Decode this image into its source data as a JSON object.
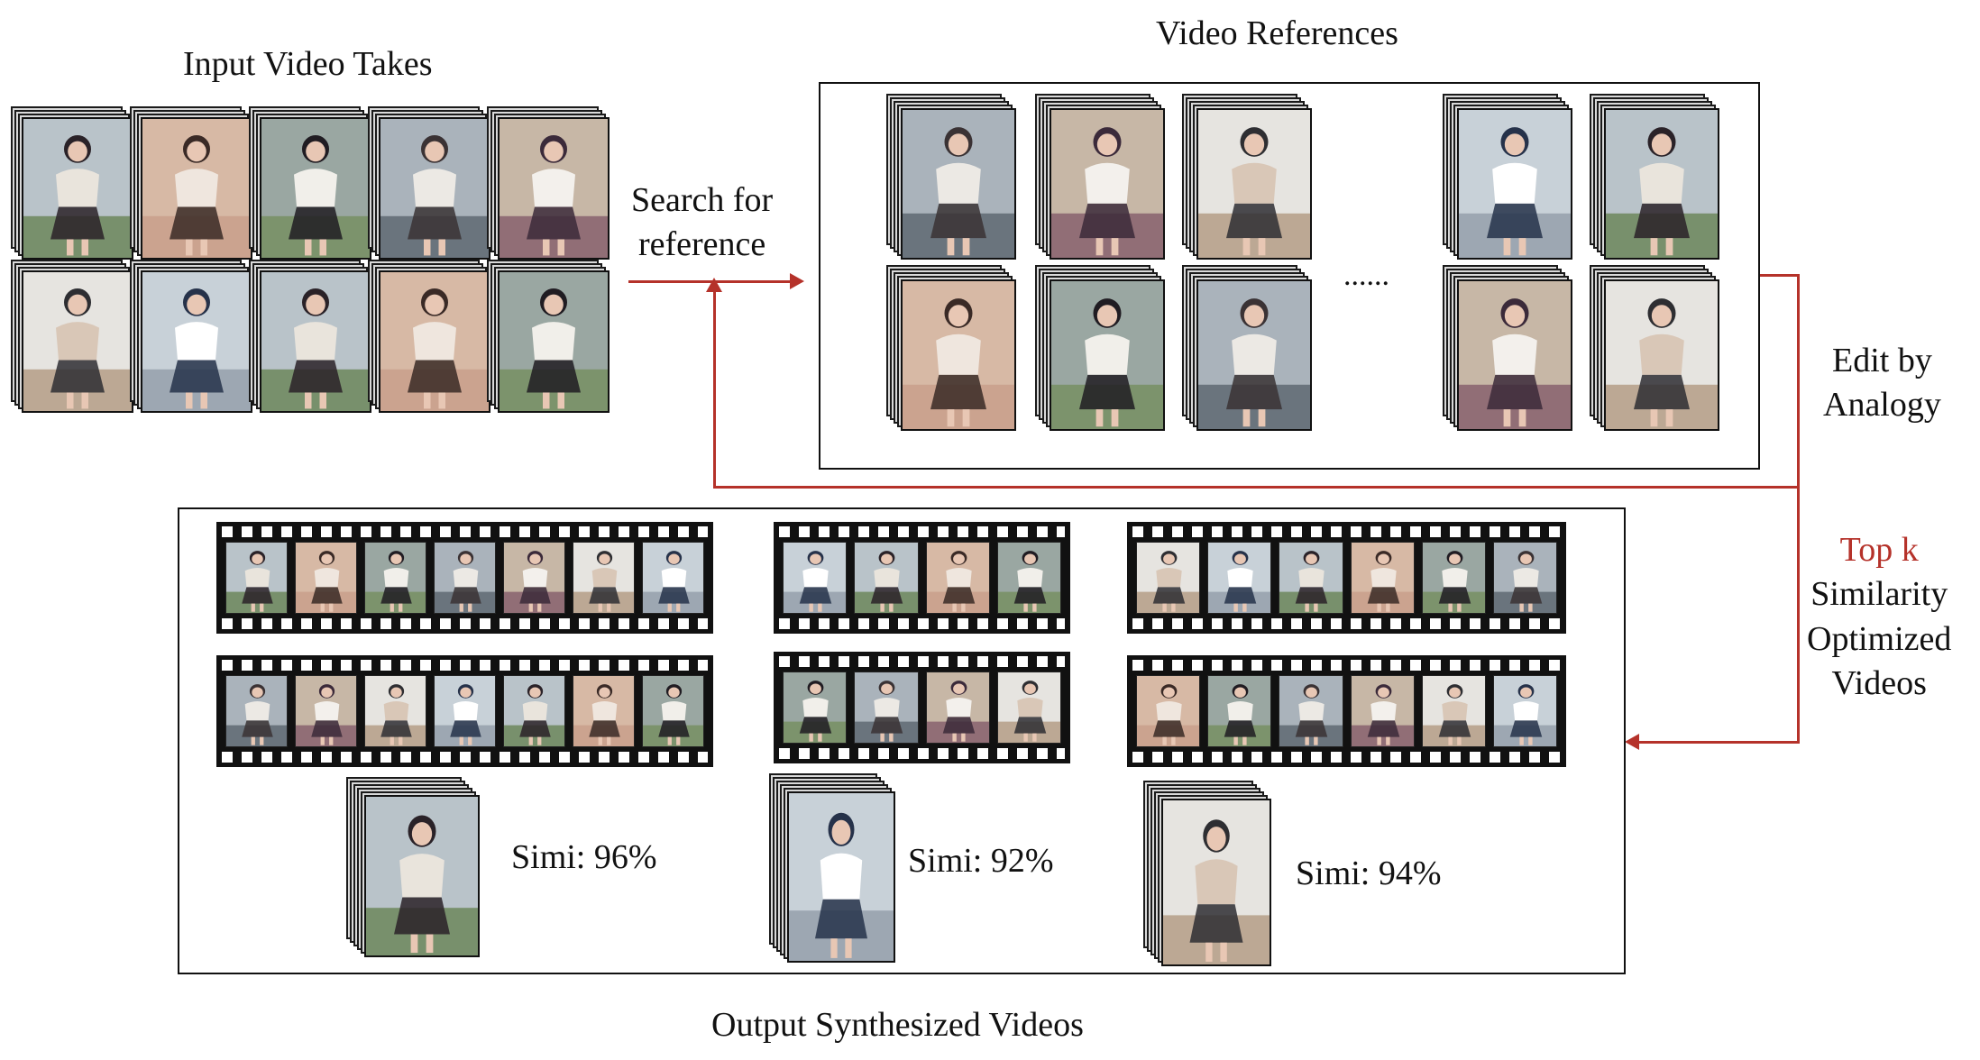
{
  "labels": {
    "input_video_takes": "Input Video Takes",
    "video_references": "Video References",
    "search_line1": "Search for",
    "search_line2": "reference",
    "edit_line1": "Edit by",
    "edit_line2": "Analogy",
    "topk": "Top k",
    "topk_line2": "Similarity",
    "topk_line3": "Optimized",
    "topk_line4": "Videos",
    "ellipsis": "......",
    "output_synthesized_videos": "Output Synthesized Videos"
  },
  "outputs": [
    {
      "simi": "Simi: 96%"
    },
    {
      "simi": "Simi: 92%"
    },
    {
      "simi": "Simi: 94%"
    }
  ],
  "colors": {
    "arrow": "#b5322a",
    "accent_text": "#b5322a"
  }
}
